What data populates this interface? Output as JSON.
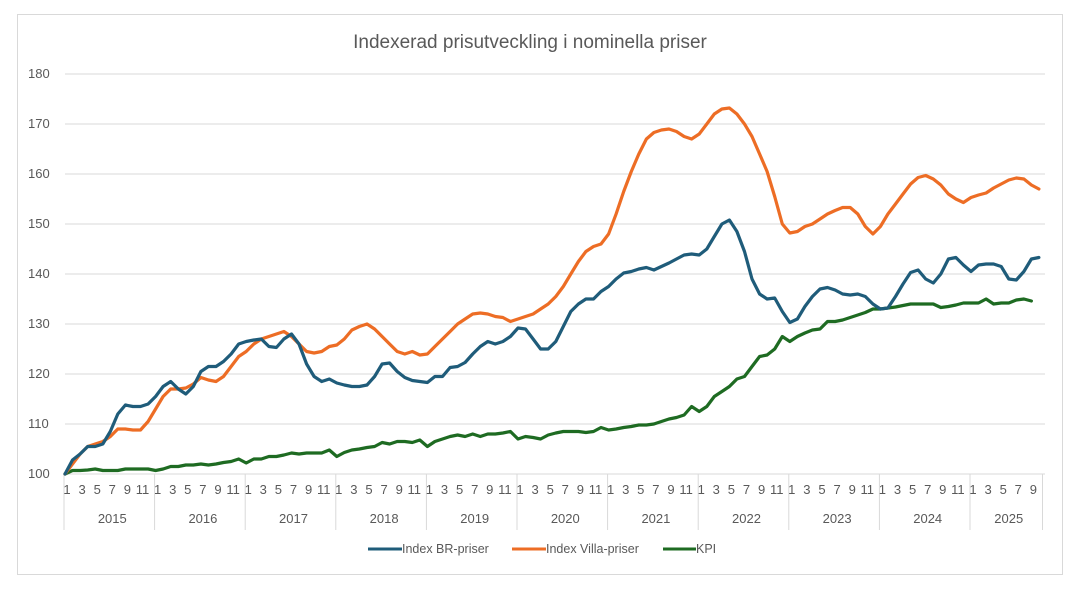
{
  "chart_data": {
    "type": "line",
    "title": "Indexerad prisutveckling i nominella priser",
    "xlabel": "",
    "ylabel": "",
    "ylim": [
      100,
      180
    ],
    "yticks": [
      100,
      110,
      120,
      130,
      140,
      150,
      160,
      170,
      180
    ],
    "grid": true,
    "legend_position": "bottom",
    "years": [
      "2015",
      "2016",
      "2017",
      "2018",
      "2019",
      "2020",
      "2021",
      "2022",
      "2023",
      "2024",
      "2025"
    ],
    "month_tick_labels": [
      "1",
      "3",
      "5",
      "7",
      "9",
      "11"
    ],
    "months_in_last_year": 10,
    "x_description": "monthly, January 2015 to October 2025",
    "series": [
      {
        "name": "Index BR-priser",
        "color": "#1f5c7a",
        "values": [
          100,
          102.8,
          104,
          105.5,
          105.5,
          106,
          108.5,
          112,
          113.8,
          113.5,
          113.5,
          114,
          115.5,
          117.5,
          118.5,
          117,
          116,
          117.5,
          120.5,
          121.5,
          121.5,
          122.5,
          124,
          126,
          126.5,
          126.8,
          127,
          125.5,
          125.3,
          127,
          128,
          126,
          122,
          119.5,
          118.5,
          119,
          118.2,
          117.8,
          117.5,
          117.5,
          117.8,
          119.5,
          122,
          122.2,
          120.5,
          119.3,
          118.7,
          118.5,
          118.3,
          119.5,
          119.5,
          121.3,
          121.5,
          122.3,
          124,
          125.5,
          126.5,
          126,
          126.5,
          127.5,
          129.2,
          129,
          127,
          125,
          125,
          126.5,
          129.5,
          132.5,
          134,
          135,
          135,
          136.5,
          137.5,
          139,
          140.2,
          140.5,
          141,
          141.3,
          140.8,
          141.5,
          142.2,
          143,
          143.8,
          144,
          143.8,
          145,
          147.5,
          150,
          150.8,
          148.5,
          144.5,
          139,
          136,
          135,
          135.2,
          132.5,
          130.3,
          131,
          133.5,
          135.5,
          137,
          137.3,
          136.8,
          136,
          135.8,
          136,
          135.5,
          134,
          133,
          133.2,
          135.5,
          138,
          140.3,
          140.8,
          139,
          138.2,
          140,
          143,
          143.3,
          141.8,
          140.5,
          141.8,
          142,
          142,
          141.5,
          139,
          138.8,
          140.5,
          143,
          143.3
        ]
      },
      {
        "name": "Index Villa-priser",
        "color": "#ed6d25",
        "values": [
          100,
          102,
          104,
          105.5,
          106,
          106.5,
          107.5,
          109,
          109,
          108.8,
          108.8,
          110.5,
          113,
          115.5,
          117,
          117,
          117.2,
          118,
          119.3,
          118.8,
          118.5,
          119.5,
          121.5,
          123.5,
          124.5,
          126,
          127,
          127.5,
          128,
          128.5,
          127.5,
          126,
          124.5,
          124.2,
          124.5,
          125.5,
          125.8,
          127,
          128.8,
          129.5,
          130,
          129,
          127.5,
          126,
          124.5,
          124,
          124.5,
          123.8,
          124,
          125.5,
          127,
          128.5,
          130,
          131,
          132,
          132.2,
          132,
          131.5,
          131.3,
          130.5,
          131,
          131.5,
          132,
          133,
          134,
          135.5,
          137.5,
          140,
          142.5,
          144.5,
          145.5,
          146,
          148,
          152,
          156.5,
          160.5,
          164,
          167,
          168.3,
          168.8,
          169,
          168.5,
          167.5,
          167,
          168,
          170,
          172,
          173,
          173.2,
          172,
          170,
          167.5,
          164,
          160.5,
          155.5,
          150,
          148.2,
          148.5,
          149.5,
          150,
          151,
          152,
          152.7,
          153.3,
          153.3,
          152,
          149.5,
          148,
          149.5,
          152,
          154,
          156,
          158,
          159.3,
          159.7,
          159,
          157.8,
          156,
          155,
          154.3,
          155.3,
          155.8,
          156.2,
          157.2,
          158,
          158.8,
          159.2,
          159,
          157.8,
          157
        ]
      },
      {
        "name": "KPI",
        "color": "#1e6b22",
        "values": [
          100,
          100.7,
          100.7,
          100.8,
          101,
          100.7,
          100.7,
          100.7,
          101,
          101,
          101,
          101,
          100.7,
          101,
          101.5,
          101.5,
          101.8,
          101.8,
          102,
          101.8,
          102,
          102.3,
          102.5,
          103,
          102.2,
          103,
          103,
          103.5,
          103.5,
          103.8,
          104.2,
          104,
          104.2,
          104.2,
          104.2,
          104.8,
          103.5,
          104.3,
          104.8,
          105,
          105.3,
          105.5,
          106.3,
          106,
          106.5,
          106.5,
          106.3,
          106.8,
          105.5,
          106.5,
          107,
          107.5,
          107.8,
          107.5,
          108,
          107.5,
          108,
          108,
          108.2,
          108.5,
          107,
          107.5,
          107.3,
          107,
          107.8,
          108.2,
          108.5,
          108.5,
          108.5,
          108.3,
          108.5,
          109.3,
          108.8,
          109,
          109.3,
          109.5,
          109.8,
          109.8,
          110,
          110.5,
          111,
          111.3,
          111.8,
          113.5,
          112.5,
          113.5,
          115.5,
          116.5,
          117.5,
          119,
          119.5,
          121.5,
          123.5,
          123.8,
          125,
          127.5,
          126.5,
          127.5,
          128.2,
          128.8,
          129,
          130.5,
          130.5,
          130.8,
          131.3,
          131.8,
          132.3,
          133,
          133,
          133.2,
          133.4,
          133.7,
          134,
          134,
          134,
          134,
          133.3,
          133.5,
          133.8,
          134.2,
          134.2,
          134.2,
          135,
          134,
          134.2,
          134.2,
          134.8,
          135,
          134.6
        ]
      }
    ]
  }
}
